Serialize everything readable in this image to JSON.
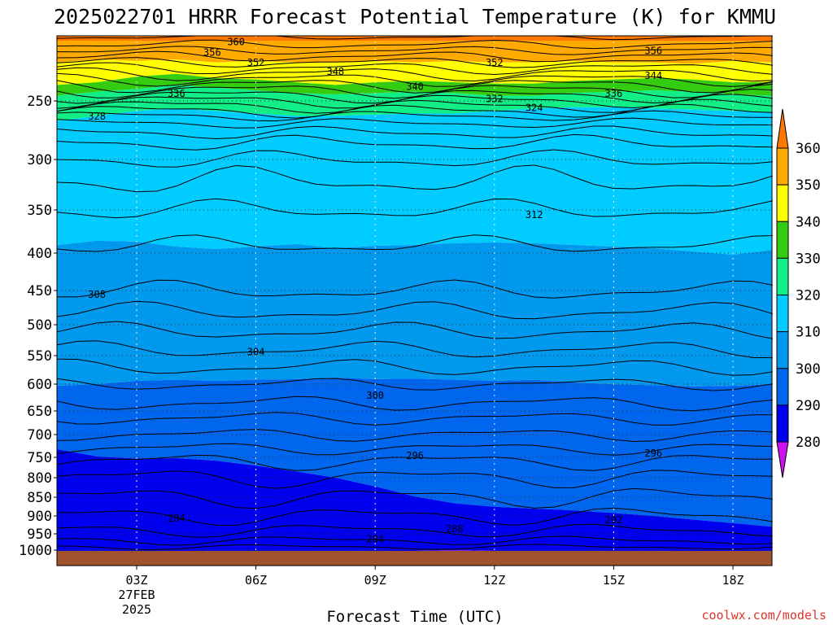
{
  "chart_data": {
    "type": "contour",
    "title": "2025022701 HRRR Forecast Potential Temperature (K) for KMMU",
    "xlabel": "Forecast Time (UTC)",
    "ylabel": "",
    "credit": "coolwx.com/models",
    "x_ticks": [
      {
        "hour": 3,
        "label": "03Z",
        "sub": [
          "27FEB",
          "2025"
        ]
      },
      {
        "hour": 6,
        "label": "06Z",
        "sub": []
      },
      {
        "hour": 9,
        "label": "09Z",
        "sub": []
      },
      {
        "hour": 12,
        "label": "12Z",
        "sub": []
      },
      {
        "hour": 15,
        "label": "15Z",
        "sub": []
      },
      {
        "hour": 18,
        "label": "18Z",
        "sub": []
      }
    ],
    "xlim": [
      1,
      19
    ],
    "y_ticks": [
      250,
      300,
      350,
      400,
      450,
      500,
      550,
      600,
      650,
      700,
      750,
      800,
      850,
      900,
      950,
      1000
    ],
    "ylim_hpa": [
      200,
      1020
    ],
    "y_scale": "log-pressure",
    "grid": true,
    "colorbar": {
      "levels": [
        270,
        280,
        290,
        300,
        310,
        320,
        330,
        340,
        350,
        360,
        370
      ],
      "tick_labels": [
        "280",
        "290",
        "300",
        "310",
        "320",
        "330",
        "340",
        "350",
        "360"
      ],
      "colors": [
        "#cc11ee",
        "#8811ee",
        "#0000ee",
        "#0066ee",
        "#0099ee",
        "#00ccff",
        "#11ee88",
        "#33cc11",
        "#ffff00",
        "#ffaa00",
        "#ff7700"
      ]
    },
    "contour_labels": [
      {
        "value": "360",
        "hour": 5.5,
        "hpa": 208
      },
      {
        "value": "356",
        "hour": 4.9,
        "hpa": 215
      },
      {
        "value": "356",
        "hour": 16.0,
        "hpa": 214
      },
      {
        "value": "352",
        "hour": 6.0,
        "hpa": 222
      },
      {
        "value": "352",
        "hour": 12.0,
        "hpa": 222
      },
      {
        "value": "348",
        "hour": 8.0,
        "hpa": 228
      },
      {
        "value": "344",
        "hour": 16.0,
        "hpa": 231
      },
      {
        "value": "340",
        "hour": 10.0,
        "hpa": 239
      },
      {
        "value": "336",
        "hour": 4.0,
        "hpa": 244
      },
      {
        "value": "336",
        "hour": 15.0,
        "hpa": 244
      },
      {
        "value": "332",
        "hour": 12.0,
        "hpa": 248
      },
      {
        "value": "328",
        "hour": 2.0,
        "hpa": 262
      },
      {
        "value": "324",
        "hour": 13.0,
        "hpa": 255
      },
      {
        "value": "312",
        "hour": 13.0,
        "hpa": 355
      },
      {
        "value": "308",
        "hour": 2.0,
        "hpa": 455
      },
      {
        "value": "304",
        "hour": 6.0,
        "hpa": 543
      },
      {
        "value": "300",
        "hour": 9.0,
        "hpa": 620
      },
      {
        "value": "296",
        "hour": 10.0,
        "hpa": 745
      },
      {
        "value": "296",
        "hour": 16.0,
        "hpa": 740
      },
      {
        "value": "292",
        "hour": 15.0,
        "hpa": 910
      },
      {
        "value": "288",
        "hour": 11.0,
        "hpa": 935
      },
      {
        "value": "284",
        "hour": 4.0,
        "hpa": 905
      },
      {
        "value": "284",
        "hour": 9.0,
        "hpa": 965
      }
    ]
  }
}
